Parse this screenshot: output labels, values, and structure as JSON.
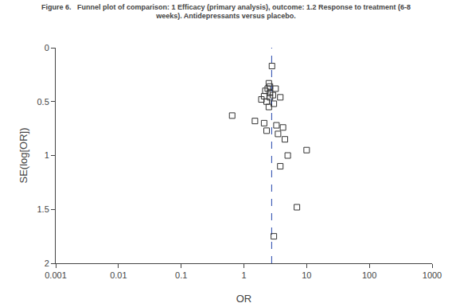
{
  "chart_data": {
    "type": "scatter",
    "title": "Figure 6.   Funnel plot of comparison: 1 Efficacy (primary analysis), outcome: 1.2 Response to treatment (6-8\nweeks). Antidepressants versus placebo.",
    "xlabel": "OR",
    "ylabel": "SE(log[OR])",
    "log": "x",
    "grid": false,
    "marker": "square-open",
    "color": "#333333",
    "x": [
      2.8,
      2.5,
      2.6,
      2.4,
      3.2,
      2.2,
      2.6,
      2.9,
      2.1,
      2.6,
      3.8,
      1.9,
      2.3,
      3.0,
      2.5,
      0.65,
      1.5,
      2.1,
      3.3,
      4.2,
      2.3,
      3.5,
      4.5,
      5.0,
      3.8,
      10.0,
      7.0,
      3.0
    ],
    "y": [
      0.17,
      0.33,
      0.36,
      0.38,
      0.38,
      0.4,
      0.42,
      0.44,
      0.45,
      0.46,
      0.46,
      0.48,
      0.5,
      0.52,
      0.55,
      0.63,
      0.68,
      0.7,
      0.72,
      0.74,
      0.77,
      0.8,
      0.85,
      1.0,
      1.1,
      0.95,
      1.48,
      1.75
    ],
    "vline": {
      "x": 2.77,
      "color": "#2244aa",
      "line_style": "dashed"
    },
    "xlim": [
      0.001,
      1000
    ],
    "xticks": [
      0.001,
      0.01,
      0.1,
      1,
      10,
      100,
      1000
    ],
    "ylim": [
      2.0,
      0.0
    ],
    "yticks": [
      0,
      0.5,
      1,
      1.5,
      2
    ]
  }
}
